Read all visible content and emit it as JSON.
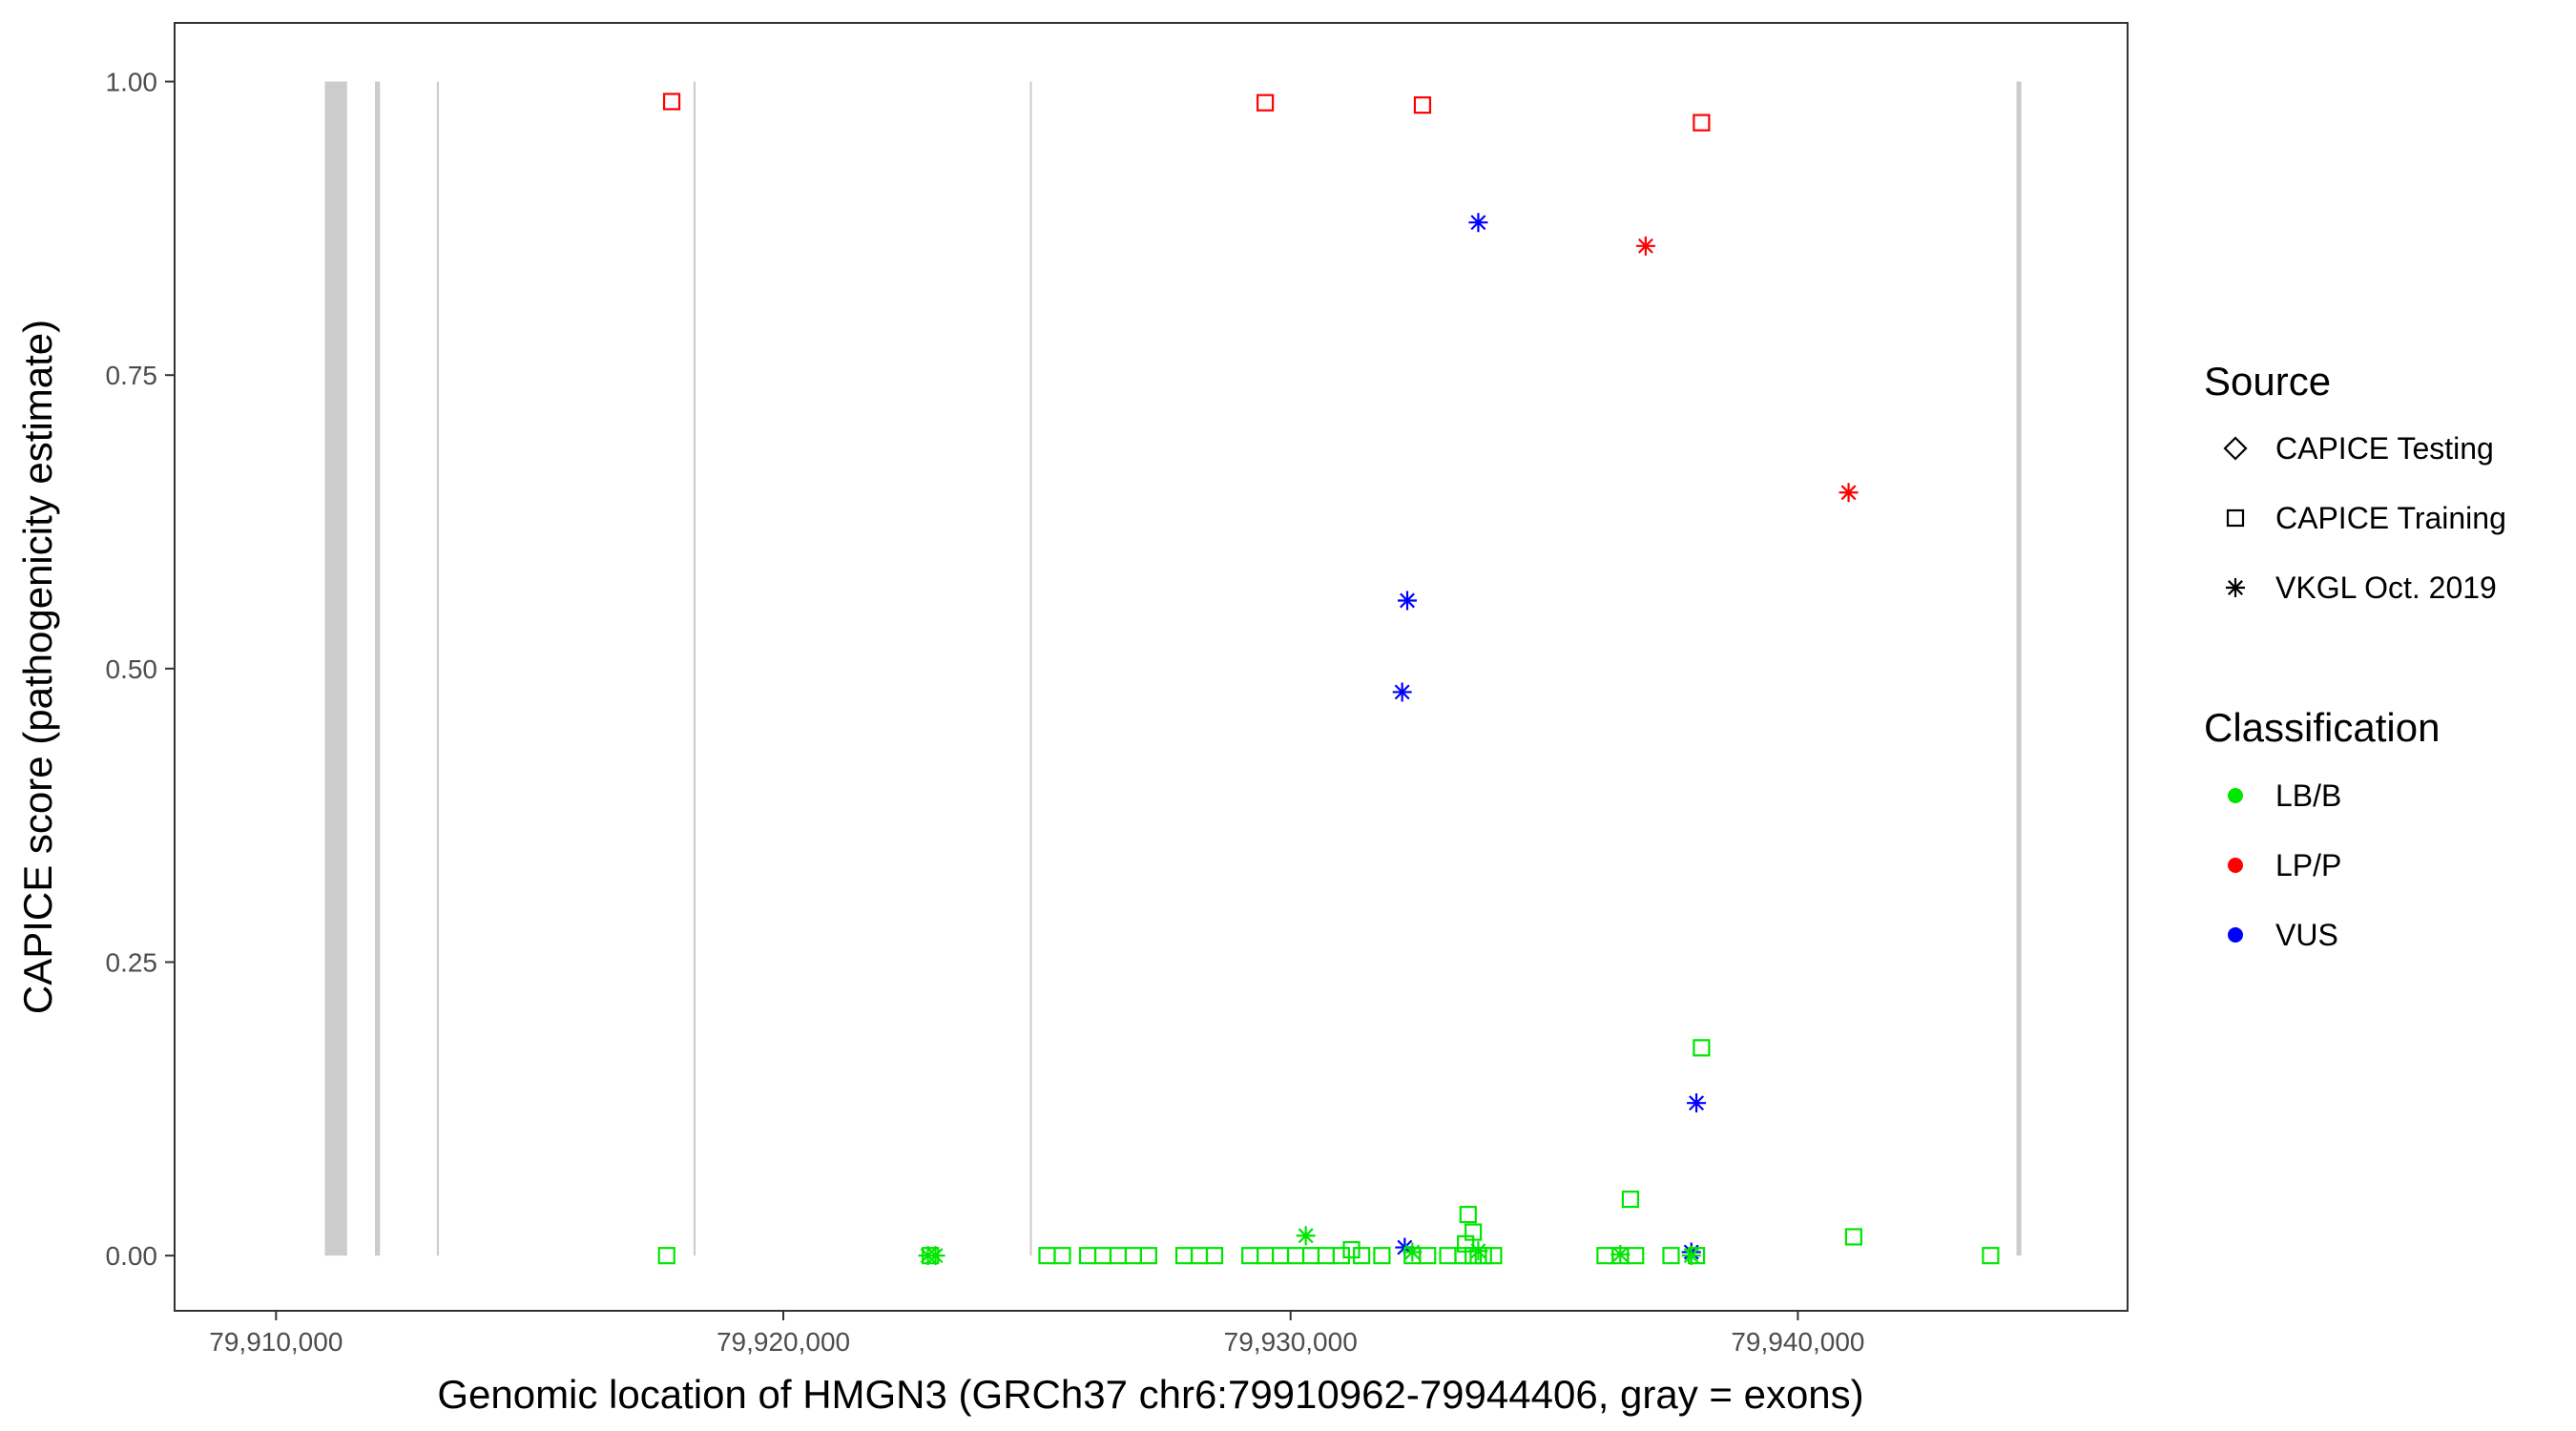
{
  "chart_data": {
    "type": "scatter",
    "title": "",
    "xlabel": "Genomic location of HMGN3 (GRCh37 chr6:79910962-79944406, gray = exons)",
    "ylabel": "CAPICE score (pathogenicity estimate)",
    "xlim": [
      79908000,
      79946500
    ],
    "ylim": [
      -0.047,
      1.05
    ],
    "x_ticks": [
      79910000,
      79920000,
      79930000,
      79940000
    ],
    "x_tick_labels": [
      "79,910,000",
      "79,920,000",
      "79,930,000",
      "79,940,000"
    ],
    "y_ticks": [
      0,
      0.25,
      0.5,
      0.75,
      1.0
    ],
    "y_tick_labels": [
      "0.00",
      "0.25",
      "0.50",
      "0.75",
      "1.00"
    ],
    "grid": false,
    "exons": [
      {
        "start": 79910962,
        "end": 79911400
      },
      {
        "start": 79911950,
        "end": 79912050
      },
      {
        "start": 79913170,
        "end": 79913210
      },
      {
        "start": 79918230,
        "end": 79918270
      },
      {
        "start": 79924860,
        "end": 79924900
      },
      {
        "start": 79944310,
        "end": 79944406
      }
    ],
    "colors": {
      "LB/B": "#00e600",
      "LP/P": "#ff0000",
      "VUS": "#0000ff",
      "exon": "#cccccc"
    },
    "legend": {
      "placement": "right",
      "source": {
        "title": "Source",
        "entries": [
          {
            "label": "CAPICE Testing",
            "shape": "diamond"
          },
          {
            "label": "CAPICE Training",
            "shape": "square"
          },
          {
            "label": "VKGL Oct. 2019",
            "shape": "asterisk"
          }
        ]
      },
      "classification": {
        "title": "Classification",
        "entries": [
          {
            "label": "LB/B",
            "color": "#00e600"
          },
          {
            "label": "LP/P",
            "color": "#ff0000"
          },
          {
            "label": "VUS",
            "color": "#0000ff"
          }
        ]
      }
    },
    "series": [
      {
        "name": "CAPICE Training",
        "class": "LP/P",
        "shape": "square",
        "points": [
          [
            79917800,
            0.983
          ],
          [
            79929500,
            0.982
          ],
          [
            79932600,
            0.98
          ],
          [
            79938100,
            0.965
          ]
        ]
      },
      {
        "name": "VKGL Oct. 2019",
        "class": "LP/P",
        "shape": "asterisk",
        "points": [
          [
            79937000,
            0.86
          ],
          [
            79941000,
            0.65
          ]
        ]
      },
      {
        "name": "VKGL Oct. 2019",
        "class": "VUS",
        "shape": "asterisk",
        "points": [
          [
            79933700,
            0.88
          ],
          [
            79932300,
            0.558
          ],
          [
            79932200,
            0.48
          ],
          [
            79938000,
            0.13
          ],
          [
            79932250,
            0.007
          ],
          [
            79937900,
            0.003
          ]
        ]
      },
      {
        "name": "VKGL Oct. 2019",
        "class": "LB/B",
        "shape": "asterisk",
        "points": [
          [
            79922850,
            0.0
          ],
          [
            79923000,
            0.0
          ],
          [
            79930300,
            0.017
          ],
          [
            79932400,
            0.003
          ],
          [
            79933700,
            0.004
          ],
          [
            79936500,
            0.001
          ],
          [
            79937900,
            0.0
          ]
        ]
      },
      {
        "name": "CAPICE Training",
        "class": "LB/B",
        "shape": "square",
        "points": [
          [
            79938100,
            0.177
          ],
          [
            79936700,
            0.048
          ],
          [
            79933500,
            0.035
          ],
          [
            79941100,
            0.016
          ],
          [
            79933600,
            0.02
          ],
          [
            79933450,
            0.01
          ],
          [
            79931200,
            0.005
          ],
          [
            79917700,
            0.0
          ],
          [
            79922900,
            0.0
          ],
          [
            79925200,
            0.0
          ],
          [
            79925500,
            0.0
          ],
          [
            79926000,
            0.0
          ],
          [
            79926300,
            0.0
          ],
          [
            79926600,
            0.0
          ],
          [
            79926900,
            0.0
          ],
          [
            79927200,
            0.0
          ],
          [
            79927900,
            0.0
          ],
          [
            79928200,
            0.0
          ],
          [
            79928500,
            0.0
          ],
          [
            79929200,
            0.0
          ],
          [
            79929500,
            0.0
          ],
          [
            79929800,
            0.0
          ],
          [
            79930100,
            0.0
          ],
          [
            79930400,
            0.0
          ],
          [
            79930700,
            0.0
          ],
          [
            79931000,
            0.0
          ],
          [
            79931400,
            0.0
          ],
          [
            79931800,
            0.0
          ],
          [
            79932400,
            0.0
          ],
          [
            79932700,
            0.0
          ],
          [
            79933100,
            0.0
          ],
          [
            79933400,
            0.0
          ],
          [
            79933600,
            0.0
          ],
          [
            79933800,
            0.0
          ],
          [
            79934000,
            0.0
          ],
          [
            79936200,
            0.0
          ],
          [
            79936500,
            0.0
          ],
          [
            79936800,
            0.0
          ],
          [
            79937500,
            0.0
          ],
          [
            79938000,
            0.0
          ],
          [
            79943800,
            0.0
          ]
        ]
      }
    ]
  }
}
